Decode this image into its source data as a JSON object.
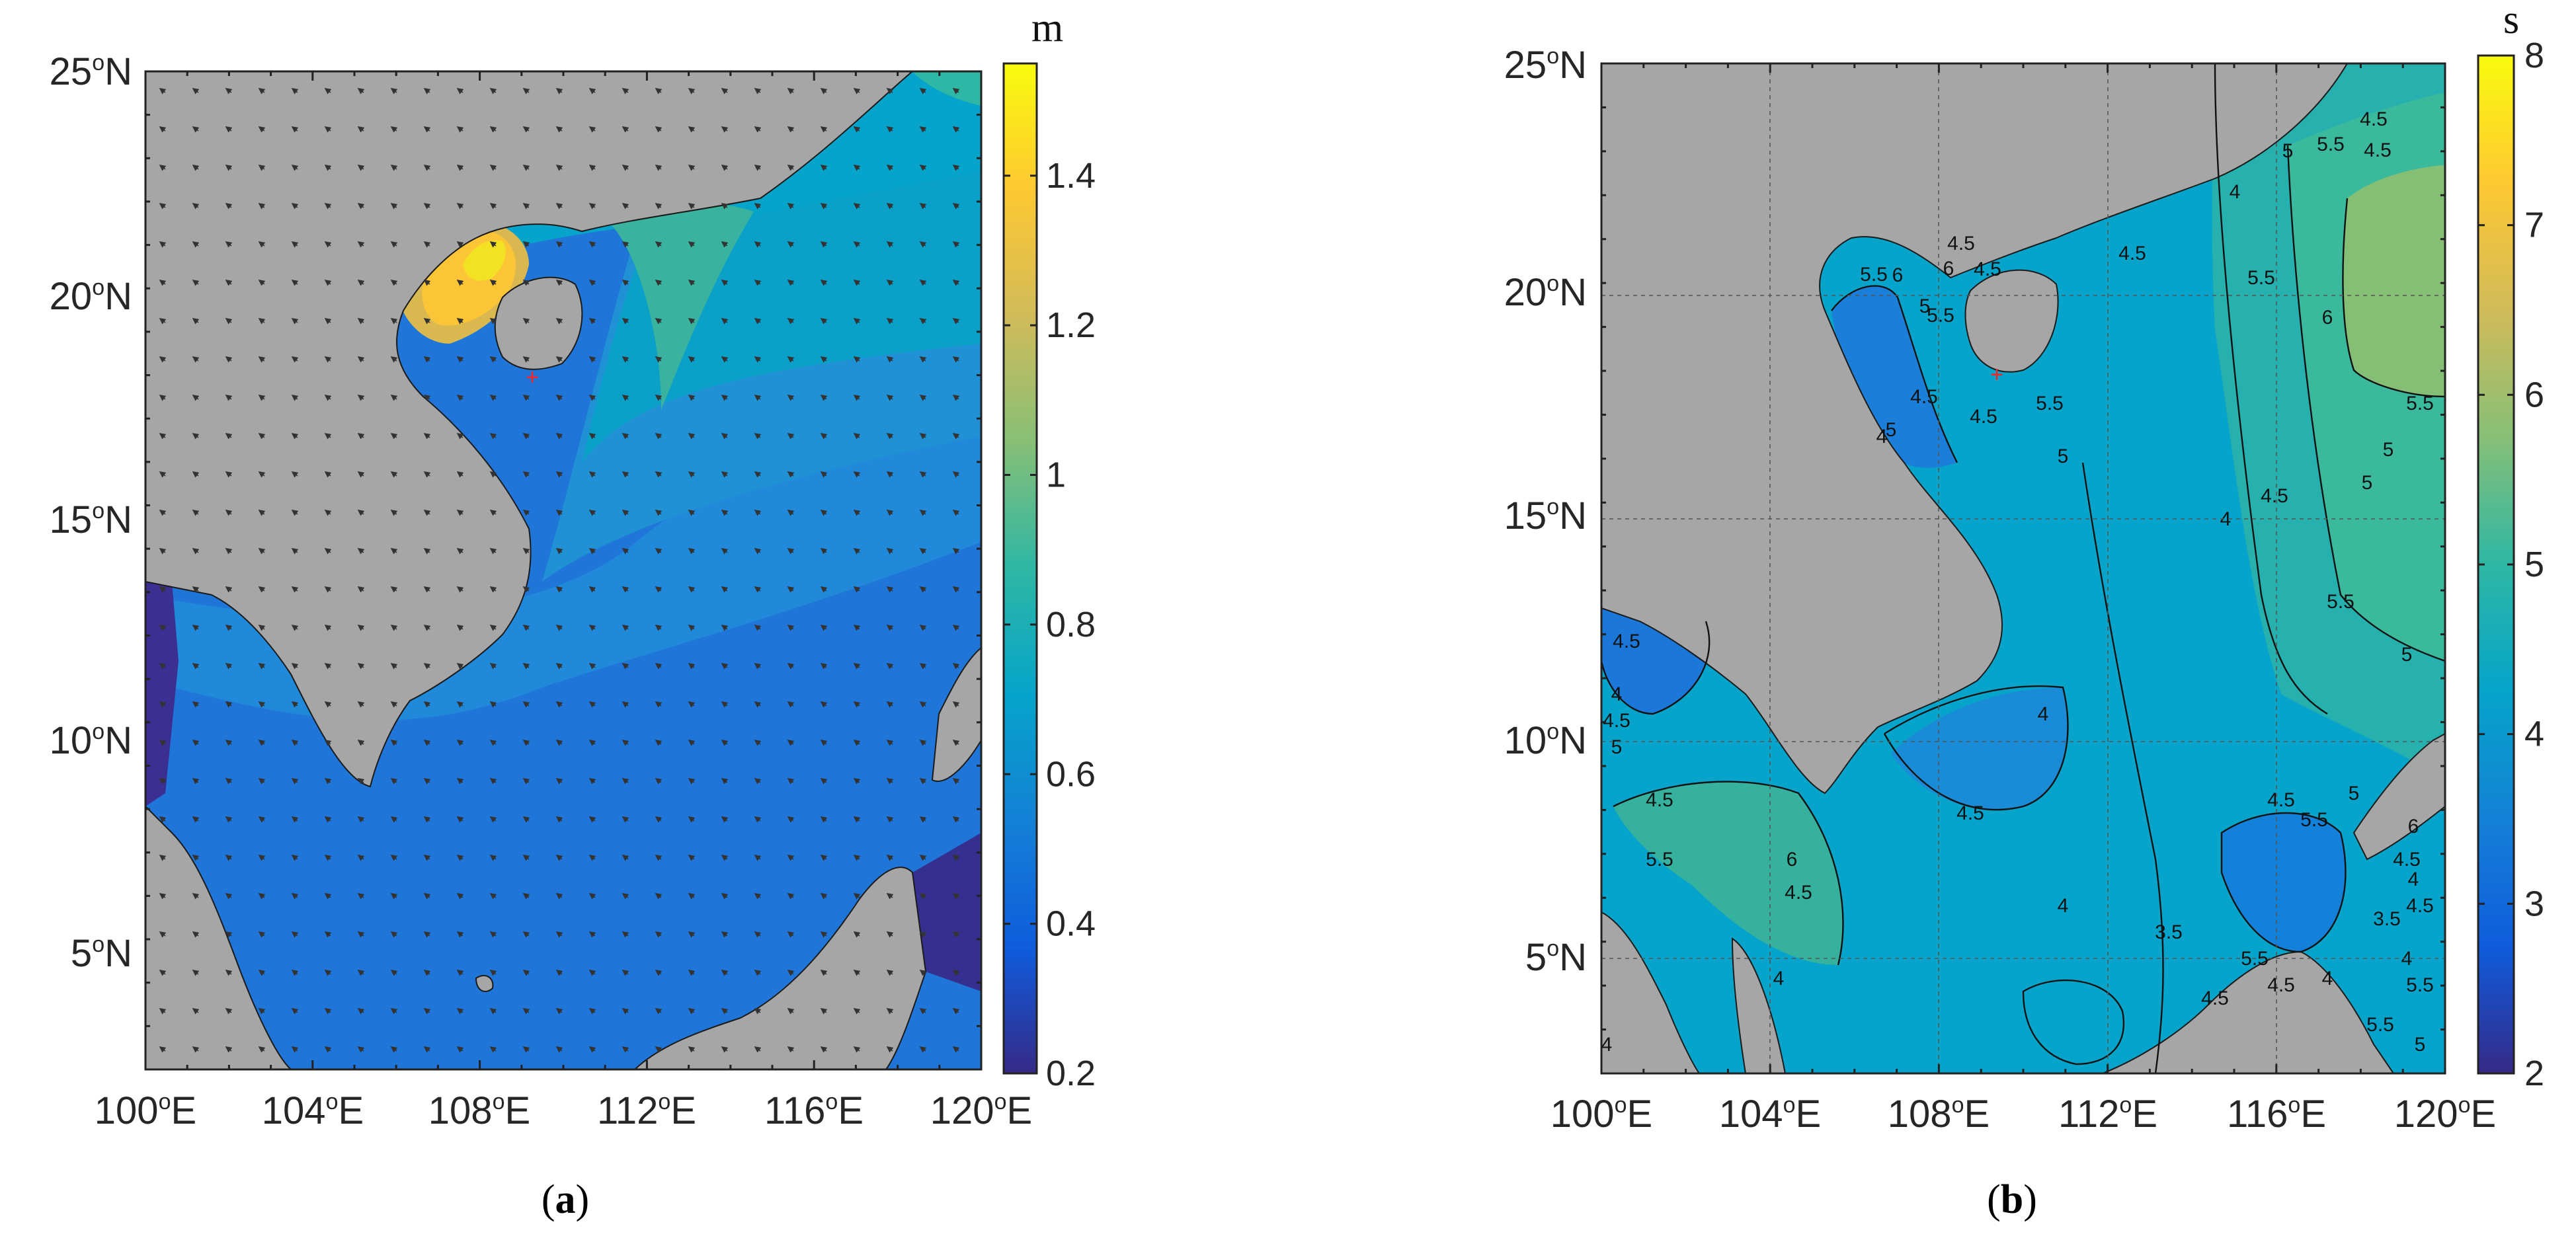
{
  "panels": [
    {
      "id": "a",
      "caption_letter": "a",
      "colorbar": {
        "unit": "m",
        "min": 0.2,
        "max": 1.55,
        "ticks": [
          0.2,
          0.4,
          0.6,
          0.8,
          1,
          1.2,
          1.4
        ],
        "tick_labels": [
          "0.2",
          "0.4",
          "0.6",
          "0.8",
          "1",
          "1.2",
          "1.4"
        ]
      },
      "x_tick_labels": [
        {
          "deg": "100",
          "dir": "E"
        },
        {
          "deg": "104",
          "dir": "E"
        },
        {
          "deg": "108",
          "dir": "E"
        },
        {
          "deg": "112",
          "dir": "E"
        },
        {
          "deg": "116",
          "dir": "E"
        },
        {
          "deg": "120",
          "dir": "E"
        }
      ],
      "y_tick_labels": [
        {
          "deg": "5",
          "dir": "N"
        },
        {
          "deg": "10",
          "dir": "N"
        },
        {
          "deg": "15",
          "dir": "N"
        },
        {
          "deg": "20",
          "dir": "N"
        },
        {
          "deg": "25",
          "dir": "N"
        }
      ]
    },
    {
      "id": "b",
      "caption_letter": "b",
      "colorbar": {
        "unit": "s",
        "min": 2,
        "max": 8,
        "ticks": [
          2,
          3,
          4,
          5,
          6,
          7,
          8
        ],
        "tick_labels": [
          "2",
          "3",
          "4",
          "5",
          "6",
          "7",
          "8"
        ]
      },
      "x_tick_labels": [
        {
          "deg": "100",
          "dir": "E"
        },
        {
          "deg": "104",
          "dir": "E"
        },
        {
          "deg": "108",
          "dir": "E"
        },
        {
          "deg": "112",
          "dir": "E"
        },
        {
          "deg": "116",
          "dir": "E"
        },
        {
          "deg": "120",
          "dir": "E"
        }
      ],
      "y_tick_labels": [
        {
          "deg": "5",
          "dir": "N"
        },
        {
          "deg": "10",
          "dir": "N"
        },
        {
          "deg": "15",
          "dir": "N"
        },
        {
          "deg": "20",
          "dir": "N"
        },
        {
          "deg": "25",
          "dir": "N"
        }
      ],
      "contour_labels": [
        "4.5",
        "5.5",
        "5",
        "4.5",
        "4",
        "4.5",
        "4.5",
        "4.5",
        "5",
        "5.5",
        "6",
        "5.5",
        "6",
        "5.5",
        "4.5",
        "5",
        "5.5",
        "6",
        "5.5",
        "5",
        "5",
        "4.5",
        "4",
        "4",
        "4.5",
        "5",
        "5.5",
        "5",
        "6",
        "6",
        "5.5",
        "4.5",
        "5",
        "4.5",
        "4",
        "4.5",
        "4",
        "4.5",
        "4",
        "4.5",
        "4",
        "3.5",
        "4.5",
        "5.5",
        "5",
        "4.5",
        "5.5",
        "4.5",
        "4",
        "4.5",
        "3.5",
        "4",
        "4",
        "4.5",
        "5.5",
        "5.5",
        "5",
        "4"
      ]
    }
  ],
  "colors": {
    "land": "#a6a6a6",
    "coast": "#1a1a1a",
    "marker": "#ff2222",
    "parula": [
      "#352a87",
      "#0f5cdd",
      "#1481d6",
      "#06a4ca",
      "#2eb7a4",
      "#87bf77",
      "#d1bb59",
      "#fec832",
      "#f9fb0e"
    ]
  }
}
